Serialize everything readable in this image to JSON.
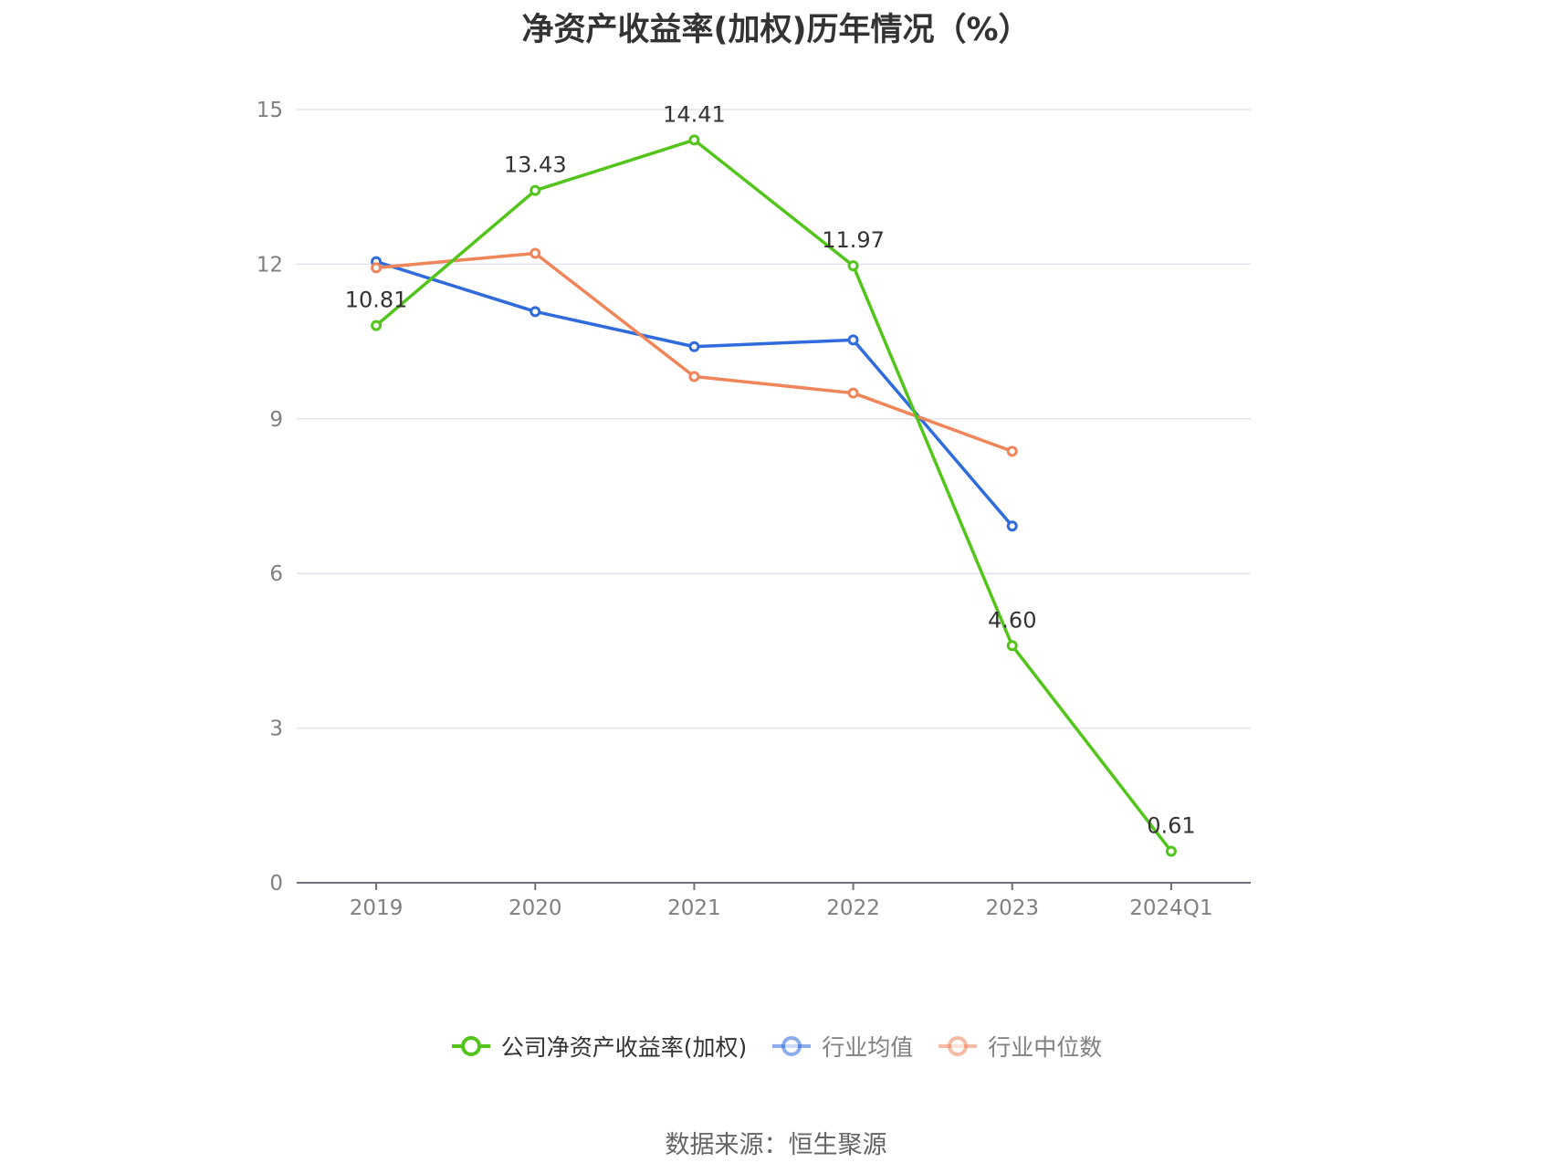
{
  "title": "净资产收益率(加权)历年情况（%）",
  "source": "数据来源：恒生聚源",
  "chart_data": {
    "type": "line",
    "categories": [
      "2019",
      "2020",
      "2021",
      "2022",
      "2023",
      "2024Q1"
    ],
    "yticks": [
      "0",
      "3",
      "6",
      "9",
      "12",
      "15"
    ],
    "ylim": [
      0,
      15
    ],
    "grid": true,
    "legend_position": "bottom",
    "series": [
      {
        "name": "公司净资产收益率(加权)",
        "color": "#52c41a",
        "values": [
          10.81,
          13.43,
          14.41,
          11.97,
          4.6,
          0.61
        ],
        "labels": [
          "10.81",
          "13.43",
          "14.41",
          "11.97",
          "4.60",
          "0.61"
        ]
      },
      {
        "name": "行业均值",
        "color": "#2f6bdc",
        "values": [
          12.05,
          11.08,
          10.4,
          10.53,
          6.92,
          null
        ]
      },
      {
        "name": "行业中位数",
        "color": "#f0855a",
        "values": [
          11.93,
          12.21,
          9.82,
          9.5,
          8.37,
          null
        ]
      }
    ]
  }
}
